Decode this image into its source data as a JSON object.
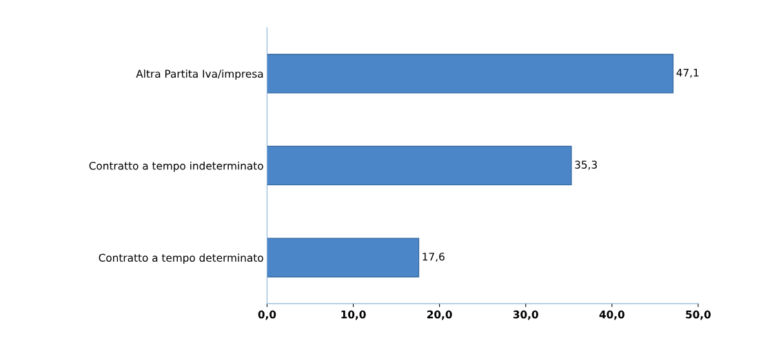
{
  "chart_data": {
    "type": "bar",
    "orientation": "horizontal",
    "categories": [
      "Altra Partita Iva/impresa",
      "Contratto a tempo indeterminato",
      "Contratto a tempo determinato"
    ],
    "values": [
      47.1,
      35.3,
      17.6
    ],
    "color": "#4a86c8",
    "value_labels": [
      "47,1",
      "35,3",
      "17,6"
    ],
    "xlim": [
      0,
      50
    ],
    "xticks": [
      {
        "value": 0,
        "label": "0,0"
      },
      {
        "value": 10,
        "label": "10,0"
      },
      {
        "value": 20,
        "label": "20,0"
      },
      {
        "value": 30,
        "label": "30,0"
      },
      {
        "value": 40,
        "label": "40,0"
      },
      {
        "value": 50,
        "label": "50,0"
      }
    ],
    "grid": false
  }
}
